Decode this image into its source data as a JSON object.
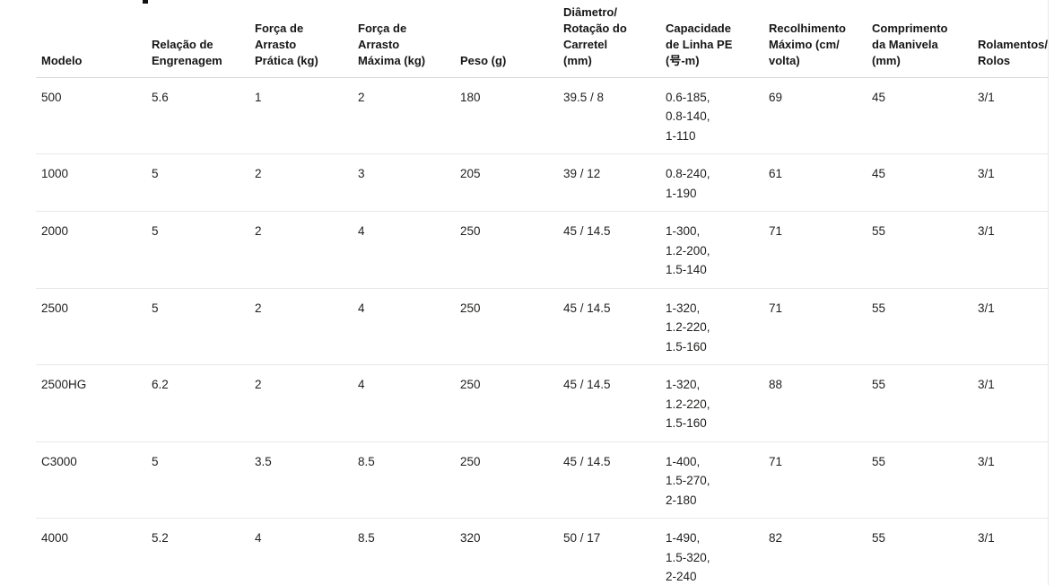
{
  "page": {
    "heading_fragment": ""
  },
  "table": {
    "columns": [
      {
        "label": "Modelo"
      },
      {
        "label": "Relação de\nEngrenagem"
      },
      {
        "label": "Força de\nArrasto\nPrática (kg)"
      },
      {
        "label": "Força de\nArrasto\nMáxima (kg)"
      },
      {
        "label": "Peso (g)"
      },
      {
        "label": "Diâmetro/\nRotação do\nCarretel\n(mm)"
      },
      {
        "label": "Capacidade\nde Linha PE\n(号-m)"
      },
      {
        "label": "Recolhimento\nMáximo (cm/\nvolta)"
      },
      {
        "label": "Comprimento\nda Manivela\n(mm)"
      },
      {
        "label": "Rolamentos/\nRolos"
      }
    ],
    "rows": [
      {
        "size": "first",
        "cells": [
          "500",
          "5.6",
          "1",
          "2",
          "180",
          "39.5 / 8",
          "0.6-185,\n0.8-140,\n1-110",
          "69",
          "45",
          "3/1"
        ]
      },
      {
        "size": "short",
        "cells": [
          "1000",
          "5",
          "2",
          "3",
          "205",
          "39 / 12",
          "0.8-240,\n1-190",
          "61",
          "45",
          "3/1"
        ]
      },
      {
        "size": "tall",
        "cells": [
          "2000",
          "5",
          "2",
          "4",
          "250",
          "45 / 14.5",
          "1-300,\n1.2-200,\n1.5-140",
          "71",
          "55",
          "3/1"
        ]
      },
      {
        "size": "tall",
        "cells": [
          "2500",
          "5",
          "2",
          "4",
          "250",
          "45 / 14.5",
          "1-320,\n1.2-220,\n1.5-160",
          "71",
          "55",
          "3/1"
        ]
      },
      {
        "size": "tall",
        "cells": [
          "2500HG",
          "6.2",
          "2",
          "4",
          "250",
          "45 / 14.5",
          "1-320,\n1.2-220,\n1.5-160",
          "88",
          "55",
          "3/1"
        ]
      },
      {
        "size": "tall",
        "cells": [
          "C3000",
          "5",
          "3.5",
          "8.5",
          "250",
          "45 / 14.5",
          "1-400,\n1.5-270,\n2-180",
          "71",
          "55",
          "3/1"
        ]
      },
      {
        "size": "tall",
        "cells": [
          "4000",
          "5.2",
          "4",
          "8.5",
          "320",
          "50 / 17",
          "1-490,\n1.5-320,\n2-240",
          "82",
          "55",
          "3/1"
        ]
      }
    ]
  },
  "colors": {
    "background": "#ffffff",
    "header_text": "#161616",
    "body_text": "#201f1e",
    "header_border": "#d9d9d9",
    "row_border": "#e8e8e8"
  }
}
